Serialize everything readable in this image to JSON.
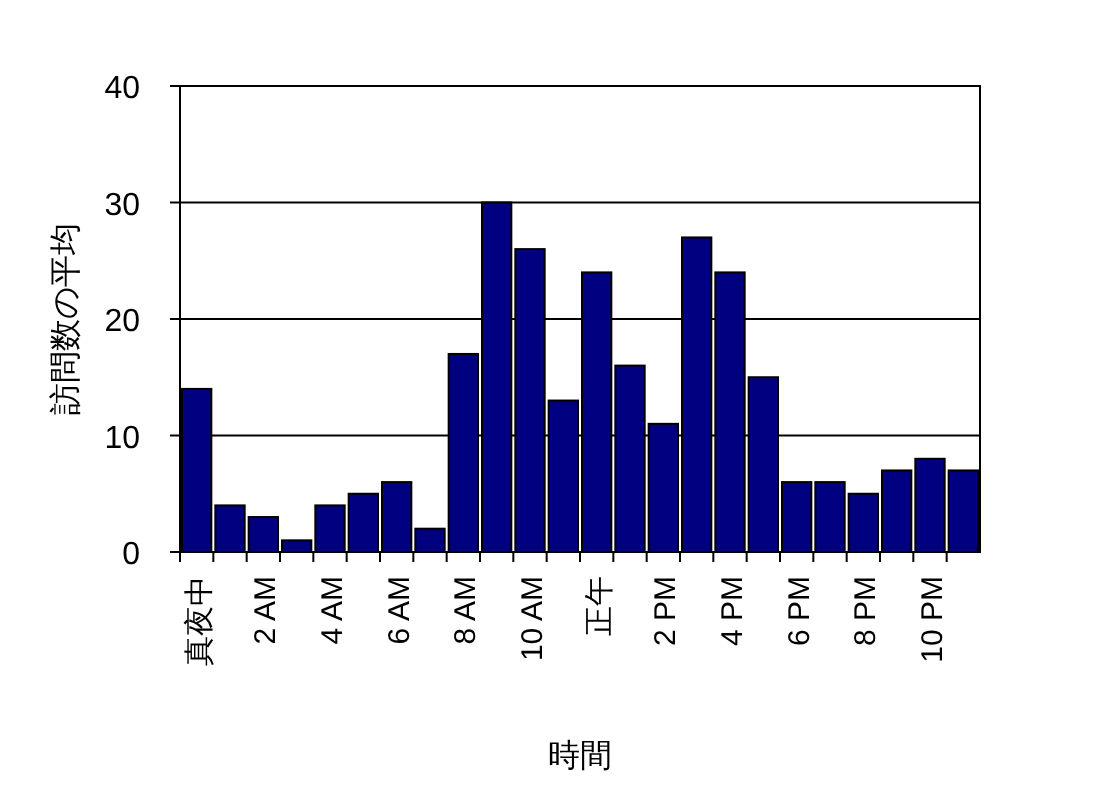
{
  "chart_data": {
    "type": "bar",
    "xlabel": "時間",
    "ylabel": "訪問数の平均",
    "categories": [
      "真夜中",
      null,
      "2 AM",
      null,
      "4 AM",
      null,
      "6 AM",
      null,
      "8 AM",
      null,
      "10 AM",
      null,
      "正午",
      null,
      "2 PM",
      null,
      "4 PM",
      null,
      "6 PM",
      null,
      "8 PM",
      null,
      "10 PM",
      null
    ],
    "values": [
      14,
      4,
      3,
      1,
      4,
      5,
      6,
      2,
      17,
      30,
      26,
      13,
      24,
      16,
      11,
      27,
      24,
      15,
      6,
      6,
      5,
      7,
      8,
      7
    ],
    "color": "#000080",
    "ylim": [
      0,
      40
    ],
    "yticks": [
      0,
      10,
      20,
      30,
      40
    ],
    "grid": "y"
  }
}
